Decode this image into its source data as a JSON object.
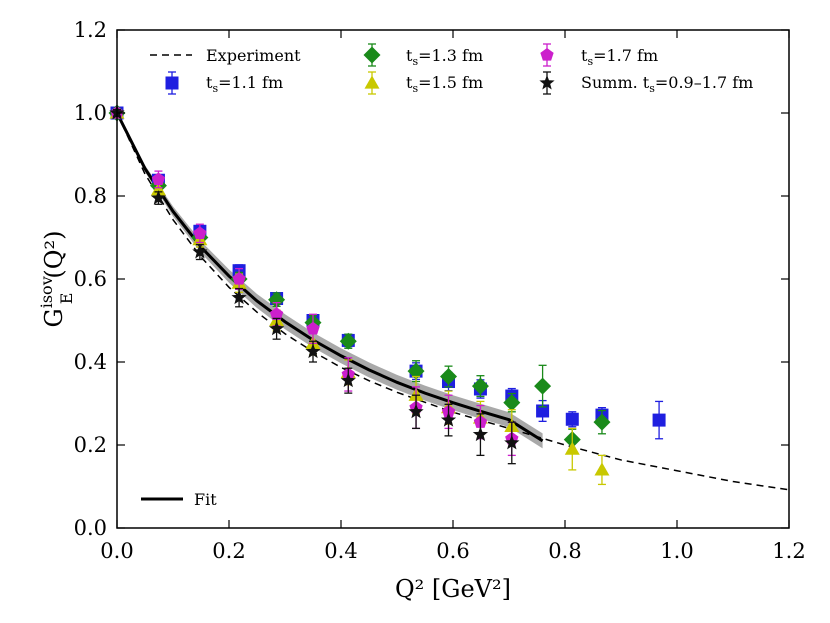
{
  "chart_data": {
    "type": "scatter",
    "title": "",
    "xlabel": "Q² [GeV²]",
    "ylabel_main": "G",
    "ylabel_sup": "isov",
    "ylabel_sub": "E",
    "ylabel_tail": "(Q²)",
    "xlim": [
      0.0,
      1.2
    ],
    "ylim": [
      0.0,
      1.2
    ],
    "x_ticks": [
      0.0,
      0.2,
      0.4,
      0.6,
      0.8,
      1.0,
      1.2
    ],
    "y_ticks": [
      0.0,
      0.2,
      0.4,
      0.6,
      0.8,
      1.0,
      1.2
    ],
    "x_tick_labels": [
      "0.0",
      "0.2",
      "0.4",
      "0.6",
      "0.8",
      "1.0",
      "1.2"
    ],
    "y_tick_labels": [
      "0.0",
      "0.2",
      "0.4",
      "0.6",
      "0.8",
      "1.0",
      "1.2"
    ],
    "grid": false,
    "legend_position": "top",
    "series": [
      {
        "name": "t_s=1.1 fm",
        "label_t": "t",
        "label_sub": "s",
        "label_rest": "=1.1 fm",
        "marker": "square",
        "color": "#1f1fe0",
        "x": [
          0.0,
          0.074,
          0.148,
          0.218,
          0.285,
          0.35,
          0.413,
          0.534,
          0.592,
          0.649,
          0.705,
          0.76,
          0.813,
          0.866,
          0.968
        ],
        "y": [
          1.0,
          0.838,
          0.715,
          0.62,
          0.553,
          0.5,
          0.452,
          0.378,
          0.353,
          0.335,
          0.318,
          0.282,
          0.262,
          0.272,
          0.26
        ],
        "err": [
          0.008,
          0.01,
          0.012,
          0.014,
          0.014,
          0.014,
          0.015,
          0.02,
          0.022,
          0.022,
          0.018,
          0.025,
          0.018,
          0.018,
          0.045
        ]
      },
      {
        "name": "t_s=1.3 fm",
        "label_t": "t",
        "label_sub": "s",
        "label_rest": "=1.3 fm",
        "marker": "diamond",
        "color": "#1a8a1a",
        "x": [
          0.0,
          0.074,
          0.148,
          0.218,
          0.285,
          0.35,
          0.413,
          0.534,
          0.592,
          0.649,
          0.705,
          0.76,
          0.813,
          0.866
        ],
        "y": [
          1.0,
          0.825,
          0.7,
          0.6,
          0.55,
          0.495,
          0.45,
          0.378,
          0.365,
          0.342,
          0.302,
          0.342,
          0.213,
          0.255
        ],
        "err": [
          0.008,
          0.012,
          0.014,
          0.016,
          0.016,
          0.017,
          0.017,
          0.025,
          0.025,
          0.025,
          0.022,
          0.05,
          0.025,
          0.028
        ]
      },
      {
        "name": "t_s=1.5 fm",
        "label_t": "t",
        "label_sub": "s",
        "label_rest": "=1.5 fm",
        "marker": "triangle",
        "color": "#c8c800",
        "x": [
          0.0,
          0.074,
          0.148,
          0.218,
          0.285,
          0.35,
          0.413,
          0.534,
          0.592,
          0.649,
          0.705,
          0.813,
          0.866
        ],
        "y": [
          1.0,
          0.815,
          0.695,
          0.59,
          0.5,
          0.445,
          0.375,
          0.32,
          0.29,
          0.265,
          0.245,
          0.19,
          0.14
        ],
        "err": [
          0.008,
          0.015,
          0.018,
          0.022,
          0.025,
          0.028,
          0.03,
          0.045,
          0.04,
          0.04,
          0.04,
          0.05,
          0.035
        ]
      },
      {
        "name": "t_s=1.7 fm",
        "label_t": "t",
        "label_sub": "s",
        "label_rest": "=1.7 fm",
        "marker": "pentagon",
        "color": "#cc1fcc",
        "x": [
          0.0,
          0.074,
          0.148,
          0.218,
          0.285,
          0.35,
          0.413,
          0.534,
          0.592,
          0.649,
          0.705
        ],
        "y": [
          1.0,
          0.84,
          0.71,
          0.6,
          0.515,
          0.48,
          0.37,
          0.29,
          0.28,
          0.255,
          0.215
        ],
        "err": [
          0.008,
          0.02,
          0.022,
          0.025,
          0.028,
          0.035,
          0.04,
          0.05,
          0.04,
          0.04,
          0.04
        ]
      },
      {
        "name": "Summ. t_s=0.9-1.7 fm",
        "label_t": "Summ. t",
        "label_sub": "s",
        "label_rest": "=0.9–1.7 fm",
        "marker": "star",
        "color": "#111111",
        "x": [
          0.0,
          0.074,
          0.148,
          0.218,
          0.285,
          0.35,
          0.413,
          0.534,
          0.592,
          0.649,
          0.705
        ],
        "y": [
          1.0,
          0.795,
          0.665,
          0.555,
          0.48,
          0.425,
          0.355,
          0.28,
          0.26,
          0.225,
          0.205
        ],
        "err": [
          0.008,
          0.015,
          0.018,
          0.022,
          0.025,
          0.025,
          0.03,
          0.04,
          0.038,
          0.05,
          0.05
        ]
      }
    ],
    "experiment": {
      "name": "Experiment",
      "style": "dashed",
      "color": "#000000",
      "x": [
        0.0,
        0.05,
        0.1,
        0.15,
        0.2,
        0.25,
        0.3,
        0.35,
        0.4,
        0.45,
        0.5,
        0.6,
        0.7,
        0.8,
        0.9,
        1.0,
        1.1,
        1.2
      ],
      "y": [
        1.0,
        0.853,
        0.743,
        0.653,
        0.58,
        0.52,
        0.468,
        0.425,
        0.387,
        0.355,
        0.327,
        0.279,
        0.24,
        0.2,
        0.164,
        0.138,
        0.112,
        0.092
      ]
    },
    "fit": {
      "name": "Fit",
      "style": "solid",
      "color": "#000000",
      "band_color": "#8c8c8c",
      "x": [
        0.0,
        0.05,
        0.1,
        0.15,
        0.2,
        0.25,
        0.3,
        0.35,
        0.4,
        0.45,
        0.5,
        0.55,
        0.6,
        0.65,
        0.7,
        0.76
      ],
      "y": [
        1.0,
        0.866,
        0.763,
        0.677,
        0.607,
        0.547,
        0.497,
        0.453,
        0.415,
        0.381,
        0.351,
        0.325,
        0.302,
        0.281,
        0.261,
        0.21
      ],
      "band_halfwidth": [
        0.0,
        0.008,
        0.012,
        0.014,
        0.016,
        0.017,
        0.018,
        0.018,
        0.018,
        0.018,
        0.018,
        0.018,
        0.018,
        0.018,
        0.018,
        0.018
      ]
    }
  }
}
